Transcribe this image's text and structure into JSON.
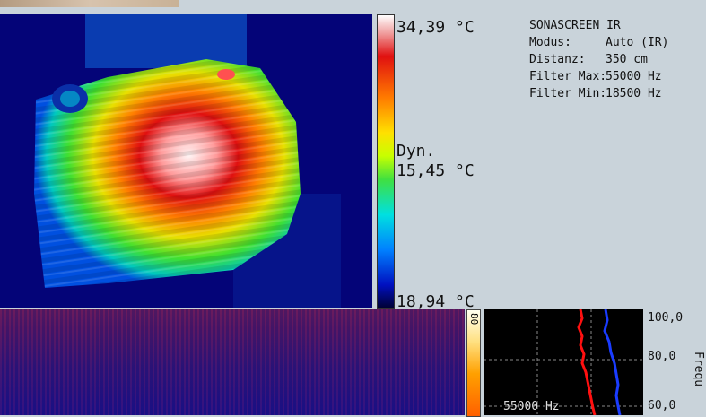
{
  "scale": {
    "max": "34,39 °C",
    "dyn_label": "Dyn.",
    "mid": "15,45 °C",
    "min": "18,94 °C"
  },
  "info": {
    "title": "SONASCREEN IR",
    "rows": [
      {
        "label": "Modus:",
        "value": "Auto (IR)"
      },
      {
        "label": "Distanz:",
        "value": "350 cm"
      },
      {
        "label": "Filter Max:",
        "value": "55000 Hz"
      },
      {
        "label": "Filter Min:",
        "value": "18500 Hz"
      }
    ]
  },
  "spectrum": {
    "scale_value": "80",
    "freq_caption": "55000 Hz",
    "axis_ticks": [
      "100,0",
      "80,0",
      "60,0"
    ],
    "axis_title": "Frequ"
  },
  "colors": {
    "background": "#c9d3da",
    "thermal_background": "#040478",
    "trace_red": "#ff1010",
    "trace_blue": "#1a3cff"
  }
}
